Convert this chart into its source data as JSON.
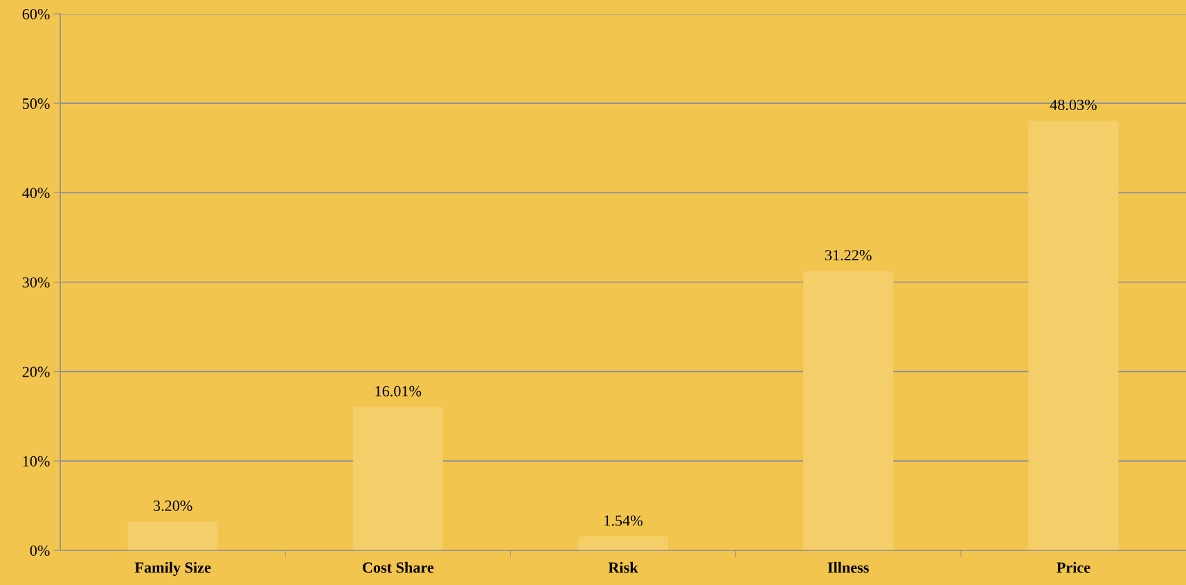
{
  "chart_data": {
    "type": "bar",
    "categories": [
      "Family Size",
      "Cost Share",
      "Risk",
      "Illness",
      "Price"
    ],
    "values": [
      3.2,
      16.01,
      1.54,
      31.22,
      48.03
    ],
    "value_labels": [
      "3.20%",
      "16.01%",
      "1.54%",
      "31.22%",
      "48.03%"
    ],
    "color": "#f4ce69",
    "ylim": [
      0,
      60
    ],
    "yticks": [
      {
        "value": 0,
        "label": "0%"
      },
      {
        "value": 10,
        "label": "10%"
      },
      {
        "value": 20,
        "label": "20%"
      },
      {
        "value": 30,
        "label": "30%"
      },
      {
        "value": 40,
        "label": "40%"
      },
      {
        "value": 50,
        "label": "50%"
      },
      {
        "value": 60,
        "label": "60%"
      }
    ],
    "grid": "y",
    "legend": false
  }
}
